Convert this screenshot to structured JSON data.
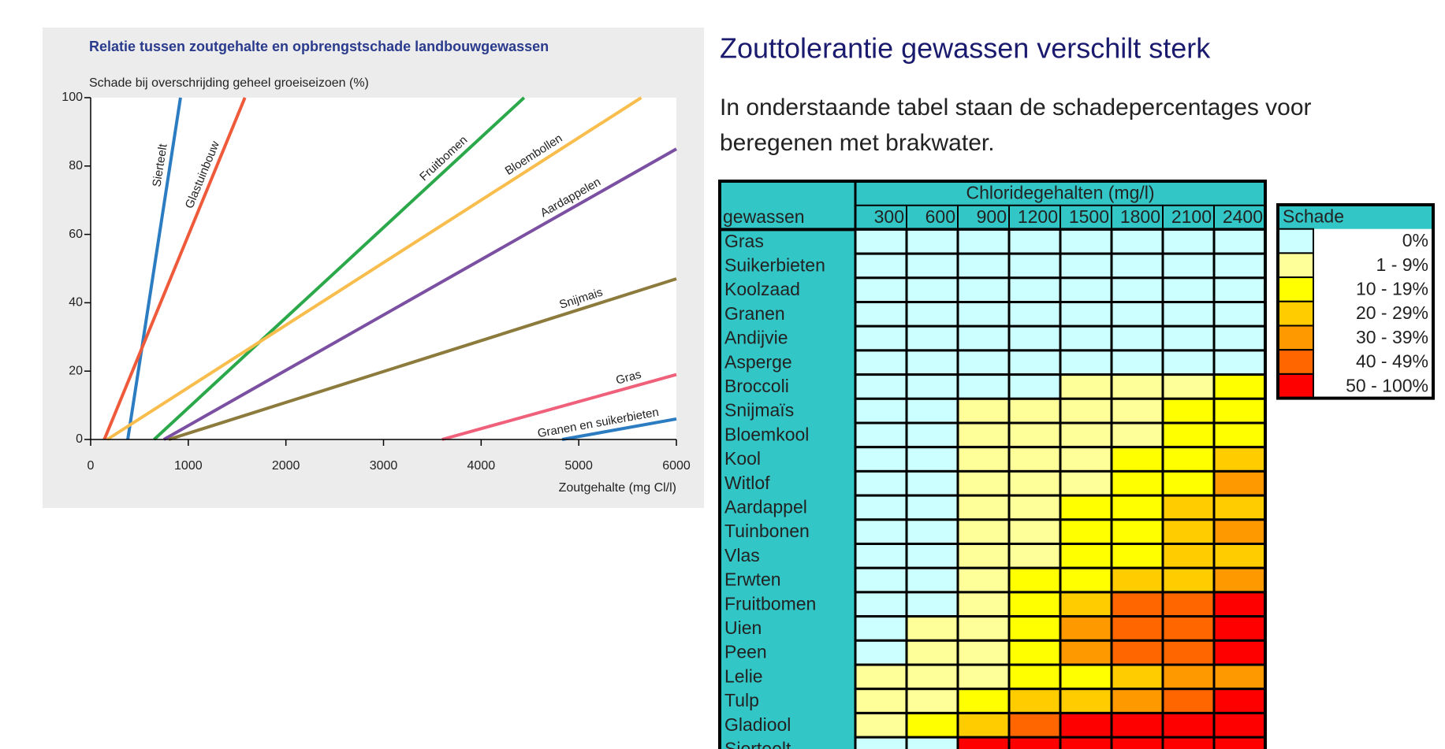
{
  "chart_data": {
    "type": "line",
    "title": "Relatie tussen zoutgehalte en opbrengstschade landbouwgewassen",
    "y_label": "Schade bij overschrijding geheel groeiseizoen (%)",
    "x_label": "Zoutgehalte (mg Cl/l)",
    "xlim": [
      0,
      6000
    ],
    "xticks": [
      0,
      1000,
      2000,
      3000,
      4000,
      5000,
      6000
    ],
    "ylim": [
      0,
      100
    ],
    "yticks": [
      0,
      20,
      40,
      60,
      80,
      100
    ],
    "series": [
      {
        "name": "Sierteelt",
        "color": "#2c7cc1",
        "x": [
          380,
          920
        ],
        "values": [
          0,
          100
        ]
      },
      {
        "name": "Glastuinbouw",
        "color": "#ef5a3a",
        "x": [
          140,
          1580
        ],
        "values": [
          0,
          100
        ]
      },
      {
        "name": "Fruitbomen",
        "color": "#2ba84a",
        "x": [
          650,
          4440
        ],
        "values": [
          0,
          100
        ]
      },
      {
        "name": "Bloembollen",
        "color": "#f8bd4c",
        "x": [
          170,
          5640
        ],
        "values": [
          0,
          100
        ]
      },
      {
        "name": "Aardappelen",
        "color": "#7b4fa1",
        "x": [
          750,
          6000
        ],
        "values": [
          0,
          85
        ]
      },
      {
        "name": "Snijmais",
        "color": "#8c7b3c",
        "x": [
          800,
          6000
        ],
        "values": [
          0,
          47
        ]
      },
      {
        "name": "Gras",
        "color": "#ef617b",
        "x": [
          3600,
          6000
        ],
        "values": [
          0,
          19
        ]
      },
      {
        "name": "Granen en suikerbieten",
        "color": "#2c7cc1",
        "x": [
          4830,
          6000
        ],
        "values": [
          0,
          6
        ]
      }
    ]
  },
  "heading": "Zouttolerantie gewassen verschilt sterk",
  "intro": [
    "In onderstaande tabel staan de schadepercentages voor",
    "beregenen met brakwater."
  ],
  "table": {
    "group_header": "Chloridegehalten (mg/l)",
    "row_header": "gewassen",
    "columns": [
      300,
      600,
      900,
      1200,
      1500,
      1800,
      2100,
      2400
    ],
    "rows": [
      {
        "name": "Gras",
        "cells": [
          "0%",
          "0%",
          "0%",
          "0%",
          "0%",
          "0%",
          "0%",
          "0%"
        ]
      },
      {
        "name": "Suikerbieten",
        "cells": [
          "0%",
          "0%",
          "0%",
          "0%",
          "0%",
          "0%",
          "0%",
          "0%"
        ]
      },
      {
        "name": "Koolzaad",
        "cells": [
          "0%",
          "0%",
          "0%",
          "0%",
          "0%",
          "0%",
          "0%",
          "0%"
        ]
      },
      {
        "name": "Granen",
        "cells": [
          "0%",
          "0%",
          "0%",
          "0%",
          "0%",
          "0%",
          "0%",
          "0%"
        ]
      },
      {
        "name": "Andijvie",
        "cells": [
          "0%",
          "0%",
          "0%",
          "0%",
          "0%",
          "0%",
          "0%",
          "0%"
        ]
      },
      {
        "name": "Asperge",
        "cells": [
          "0%",
          "0%",
          "0%",
          "0%",
          "0%",
          "0%",
          "0%",
          "0%"
        ]
      },
      {
        "name": "Broccoli",
        "cells": [
          "0%",
          "0%",
          "0%",
          "0%",
          "1 - 9%",
          "1 - 9%",
          "1 - 9%",
          "10 - 19%"
        ]
      },
      {
        "name": "Snijmaïs",
        "cells": [
          "0%",
          "0%",
          "1 - 9%",
          "1 - 9%",
          "1 - 9%",
          "1 - 9%",
          "10 - 19%",
          "10 - 19%"
        ]
      },
      {
        "name": "Bloemkool",
        "cells": [
          "0%",
          "0%",
          "1 - 9%",
          "1 - 9%",
          "1 - 9%",
          "1 - 9%",
          "10 - 19%",
          "10 - 19%"
        ]
      },
      {
        "name": "Kool",
        "cells": [
          "0%",
          "0%",
          "1 - 9%",
          "1 - 9%",
          "1 - 9%",
          "10 - 19%",
          "10 - 19%",
          "20 - 29%"
        ]
      },
      {
        "name": "Witlof",
        "cells": [
          "0%",
          "0%",
          "1 - 9%",
          "1 - 9%",
          "1 - 9%",
          "10 - 19%",
          "10 - 19%",
          "30 - 39%"
        ]
      },
      {
        "name": "Aardappel",
        "cells": [
          "0%",
          "0%",
          "1 - 9%",
          "1 - 9%",
          "10 - 19%",
          "10 - 19%",
          "20 - 29%",
          "20 - 29%"
        ]
      },
      {
        "name": "Tuinbonen",
        "cells": [
          "0%",
          "0%",
          "1 - 9%",
          "1 - 9%",
          "10 - 19%",
          "10 - 19%",
          "20 - 29%",
          "30 - 39%"
        ]
      },
      {
        "name": "Vlas",
        "cells": [
          "0%",
          "0%",
          "1 - 9%",
          "1 - 9%",
          "10 - 19%",
          "10 - 19%",
          "20 - 29%",
          "20 - 29%"
        ]
      },
      {
        "name": "Erwten",
        "cells": [
          "0%",
          "0%",
          "1 - 9%",
          "10 - 19%",
          "10 - 19%",
          "20 - 29%",
          "20 - 29%",
          "30 - 39%"
        ]
      },
      {
        "name": "Fruitbomen",
        "cells": [
          "0%",
          "0%",
          "1 - 9%",
          "10 - 19%",
          "20 - 29%",
          "40 - 49%",
          "40 - 49%",
          "50 - 100%"
        ]
      },
      {
        "name": "Uien",
        "cells": [
          "0%",
          "1 - 9%",
          "1 - 9%",
          "10 - 19%",
          "30 - 39%",
          "40 - 49%",
          "40 - 49%",
          "50 - 100%"
        ]
      },
      {
        "name": "Peen",
        "cells": [
          "0%",
          "1 - 9%",
          "1 - 9%",
          "10 - 19%",
          "30 - 39%",
          "40 - 49%",
          "40 - 49%",
          "50 - 100%"
        ]
      },
      {
        "name": "Lelie",
        "cells": [
          "1 - 9%",
          "1 - 9%",
          "1 - 9%",
          "10 - 19%",
          "10 - 19%",
          "20 - 29%",
          "30 - 39%",
          "30 - 39%"
        ]
      },
      {
        "name": "Tulp",
        "cells": [
          "1 - 9%",
          "1 - 9%",
          "10 - 19%",
          "20 - 29%",
          "20 - 29%",
          "30 - 39%",
          "40 - 49%",
          "50 - 100%"
        ]
      },
      {
        "name": "Gladiool",
        "cells": [
          "1 - 9%",
          "10 - 19%",
          "20 - 29%",
          "40 - 49%",
          "50 - 100%",
          "50 - 100%",
          "50 - 100%",
          "50 - 100%"
        ]
      },
      {
        "name": "Sierteelt",
        "cells": [
          "0%",
          "0%",
          "50 - 100%",
          "50 - 100%",
          "50 - 100%",
          "50 - 100%",
          "50 - 100%",
          "50 - 100%"
        ]
      }
    ]
  },
  "legend": {
    "title": "Schade",
    "items": [
      {
        "label": "0%",
        "color": "#ccffff"
      },
      {
        "label": "1 - 9%",
        "color": "#ffff99"
      },
      {
        "label": "10 - 19%",
        "color": "#ffff00"
      },
      {
        "label": "20 - 29%",
        "color": "#ffcc00"
      },
      {
        "label": "30 - 39%",
        "color": "#ff9900"
      },
      {
        "label": "40 - 49%",
        "color": "#ff6600"
      },
      {
        "label": "50 - 100%",
        "color": "#ff0000"
      }
    ]
  }
}
